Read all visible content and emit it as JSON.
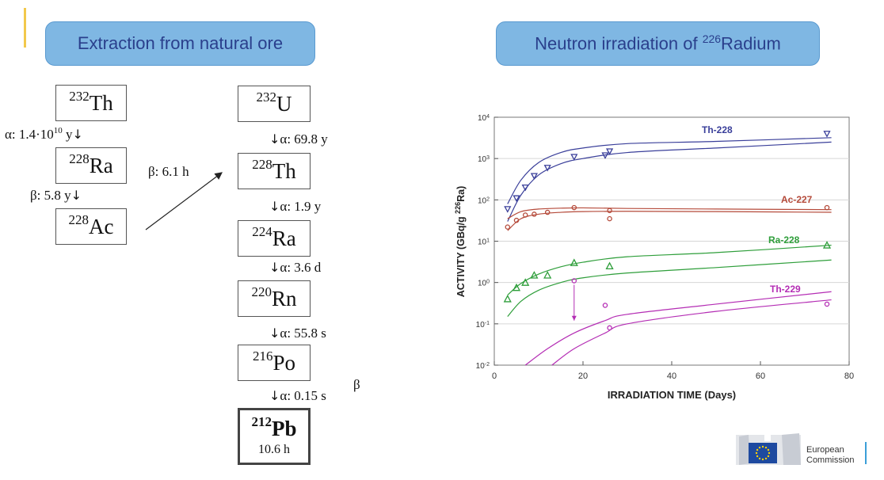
{
  "left": {
    "title": "Extraction from natural ore",
    "chain_a": [
      {
        "mass": "232",
        "symbol": "Th"
      },
      {
        "mass": "228",
        "symbol": "Ra"
      },
      {
        "mass": "228",
        "symbol": "Ac"
      }
    ],
    "decays_a": [
      {
        "label": "α: 1.4·10",
        "exp": "10",
        "unit": " y"
      },
      {
        "label": "β: 5.8 y"
      }
    ],
    "cross_label": "β: 6.1 h",
    "chain_b": [
      {
        "mass": "232",
        "symbol": "U"
      },
      {
        "mass": "228",
        "symbol": "Th"
      },
      {
        "mass": "224",
        "symbol": "Ra"
      },
      {
        "mass": "220",
        "symbol": "Rn"
      },
      {
        "mass": "216",
        "symbol": "Po"
      },
      {
        "mass": "212",
        "symbol": "Pb",
        "half_life": "10.6 h"
      }
    ],
    "decays_b": [
      "α: 69.8 y",
      "α: 1.9 y",
      "α: 3.6 d",
      "α: 55.8 s",
      "α: 0.15 s"
    ],
    "beta_mark": "β"
  },
  "right": {
    "title_pre": "Neutron irradiation of ",
    "title_sup": "226",
    "title_post": "Radium"
  },
  "chart_data": {
    "type": "scatter",
    "xlabel": "IRRADIATION TIME (Days)",
    "ylabel_pre": "ACTIVITY (GBq/g ",
    "ylabel_sup": "226",
    "ylabel_post": "Ra)",
    "xlim": [
      0,
      80
    ],
    "ylim_log10": [
      -2,
      4
    ],
    "xticks": [
      "0",
      "20",
      "40",
      "60",
      "80"
    ],
    "yticks": [
      {
        "base": "10",
        "exp": "4"
      },
      {
        "base": "10",
        "exp": "3"
      },
      {
        "base": "10",
        "exp": "2"
      },
      {
        "base": "10",
        "exp": "1"
      },
      {
        "base": "10",
        "exp": "0"
      },
      {
        "base": "10",
        "exp": "-1"
      },
      {
        "base": "10",
        "exp": "-2"
      }
    ],
    "series": [
      {
        "name": "Th-228",
        "color": "#3a3f9a",
        "marker": "triangle-down",
        "points": [
          [
            3,
            60
          ],
          [
            5,
            110
          ],
          [
            7,
            200
          ],
          [
            9,
            380
          ],
          [
            12,
            600
          ],
          [
            18,
            1100
          ],
          [
            25,
            1200
          ],
          [
            26,
            1500
          ],
          [
            75,
            4000
          ]
        ],
        "upper": [
          [
            3,
            80
          ],
          [
            6,
            300
          ],
          [
            10,
            800
          ],
          [
            15,
            1400
          ],
          [
            20,
            1800
          ],
          [
            30,
            2300
          ],
          [
            50,
            2600
          ],
          [
            76,
            3200
          ]
        ],
        "lower": [
          [
            3,
            30
          ],
          [
            6,
            130
          ],
          [
            10,
            400
          ],
          [
            15,
            750
          ],
          [
            20,
            1000
          ],
          [
            30,
            1400
          ],
          [
            50,
            1800
          ],
          [
            76,
            2500
          ]
        ]
      },
      {
        "name": "Ac-227",
        "color": "#b54a3a",
        "marker": "circle",
        "points": [
          [
            3,
            22
          ],
          [
            5,
            32
          ],
          [
            7,
            43
          ],
          [
            9,
            45
          ],
          [
            12,
            50
          ],
          [
            18,
            65
          ],
          [
            26,
            55
          ],
          [
            26,
            35
          ],
          [
            75,
            65
          ]
        ],
        "upper": [
          [
            3,
            35
          ],
          [
            6,
            52
          ],
          [
            10,
            60
          ],
          [
            15,
            63
          ],
          [
            20,
            64
          ],
          [
            30,
            62
          ],
          [
            50,
            60
          ],
          [
            76,
            58
          ]
        ],
        "lower": [
          [
            3,
            18
          ],
          [
            6,
            35
          ],
          [
            10,
            45
          ],
          [
            15,
            50
          ],
          [
            20,
            52
          ],
          [
            30,
            53
          ],
          [
            50,
            52
          ],
          [
            76,
            50
          ]
        ]
      },
      {
        "name": "Ra-228",
        "color": "#2e9e3a",
        "marker": "triangle-up",
        "points": [
          [
            3,
            0.4
          ],
          [
            5,
            0.75
          ],
          [
            7,
            1.0
          ],
          [
            9,
            1.5
          ],
          [
            12,
            1.5
          ],
          [
            18,
            3.0
          ],
          [
            26,
            2.5
          ],
          [
            75,
            8
          ]
        ],
        "upper": [
          [
            3,
            0.5
          ],
          [
            6,
            0.95
          ],
          [
            10,
            1.6
          ],
          [
            15,
            2.4
          ],
          [
            20,
            3.1
          ],
          [
            30,
            4.2
          ],
          [
            50,
            5.3
          ],
          [
            76,
            8
          ]
        ],
        "lower": [
          [
            3,
            0.15
          ],
          [
            6,
            0.35
          ],
          [
            10,
            0.65
          ],
          [
            15,
            1.0
          ],
          [
            20,
            1.3
          ],
          [
            30,
            1.7
          ],
          [
            50,
            2.3
          ],
          [
            76,
            3.5
          ]
        ]
      },
      {
        "name": "Th-229",
        "color": "#b42db4",
        "marker": "circle",
        "points": [
          [
            18,
            1.1
          ],
          [
            25,
            0.28
          ],
          [
            26,
            0.08
          ],
          [
            75,
            0.3
          ]
        ],
        "upper": [
          [
            7,
            0.01
          ],
          [
            12,
            0.025
          ],
          [
            18,
            0.06
          ],
          [
            25,
            0.12
          ],
          [
            30,
            0.17
          ],
          [
            50,
            0.3
          ],
          [
            76,
            0.6
          ]
        ],
        "lower": [
          [
            13,
            0.01
          ],
          [
            18,
            0.025
          ],
          [
            25,
            0.06
          ],
          [
            30,
            0.1
          ],
          [
            50,
            0.2
          ],
          [
            76,
            0.38
          ]
        ]
      }
    ],
    "annotations": [
      {
        "type": "arrow",
        "x": 18,
        "from": 1.1,
        "to": 0.12
      }
    ]
  },
  "logo": {
    "line1": "European",
    "line2": "Commission"
  }
}
